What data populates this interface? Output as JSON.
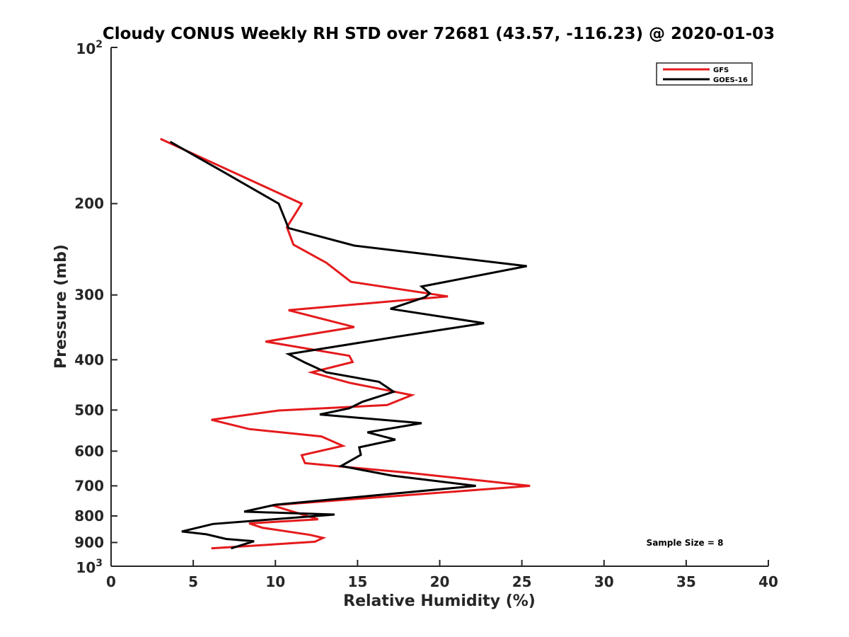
{
  "chart_data": {
    "type": "line",
    "title": "Cloudy CONUS Weekly RH STD over 72681 (43.57, -116.23) @ 2020-01-03",
    "xlabel": "Relative Humidity (%)",
    "ylabel": "Pressure (mb)",
    "xlim": [
      0,
      40
    ],
    "ylim": [
      100,
      1000
    ],
    "y_scale": "log",
    "y_reversed": true,
    "x_ticks": [
      "0",
      "5",
      "10",
      "15",
      "20",
      "25",
      "30",
      "35",
      "40"
    ],
    "y_ticks": [
      {
        "value": 100,
        "base": "10",
        "exp": "2"
      },
      {
        "value": 200,
        "label": "200"
      },
      {
        "value": 300,
        "label": "300"
      },
      {
        "value": 400,
        "label": "400"
      },
      {
        "value": 500,
        "label": "500"
      },
      {
        "value": 600,
        "label": "600"
      },
      {
        "value": 700,
        "label": "700"
      },
      {
        "value": 800,
        "label": "800"
      },
      {
        "value": 900,
        "label": "900"
      },
      {
        "value": 1000,
        "base": "10",
        "exp": "3"
      }
    ],
    "grid": false,
    "legend_position": "top-right",
    "annotation": "Sample Size = 8",
    "series": [
      {
        "name": "GFS",
        "color": "#e41a1c",
        "points": [
          [
            3.0,
            150
          ],
          [
            11.6,
            200
          ],
          [
            10.7,
            222
          ],
          [
            11.1,
            240
          ],
          [
            13.1,
            260
          ],
          [
            14.6,
            283
          ],
          [
            20.5,
            302
          ],
          [
            10.8,
            321
          ],
          [
            14.8,
            346
          ],
          [
            9.4,
            369
          ],
          [
            14.5,
            393
          ],
          [
            14.7,
            404
          ],
          [
            12.2,
            423
          ],
          [
            14.5,
            443
          ],
          [
            18.3,
            468
          ],
          [
            16.8,
            489
          ],
          [
            10.2,
            501
          ],
          [
            6.1,
            522
          ],
          [
            8.4,
            544
          ],
          [
            12.8,
            562
          ],
          [
            14.1,
            586
          ],
          [
            11.6,
            611
          ],
          [
            11.8,
            633
          ],
          [
            18.0,
            660
          ],
          [
            25.5,
            700
          ],
          [
            9.8,
            763
          ],
          [
            12.6,
            812
          ],
          [
            8.4,
            827
          ],
          [
            9.2,
            843
          ],
          [
            12.1,
            870
          ],
          [
            12.9,
            882
          ],
          [
            12.4,
            897
          ],
          [
            6.1,
            924
          ]
        ]
      },
      {
        "name": "GOES-16",
        "color": "#000000",
        "points": [
          [
            3.6,
            152
          ],
          [
            7.0,
            175
          ],
          [
            10.2,
            200
          ],
          [
            10.8,
            223
          ],
          [
            14.8,
            241
          ],
          [
            25.3,
            264
          ],
          [
            18.9,
            289
          ],
          [
            19.4,
            298
          ],
          [
            19.1,
            303
          ],
          [
            17.0,
            319
          ],
          [
            22.7,
            340
          ],
          [
            17.4,
            361
          ],
          [
            10.8,
            390
          ],
          [
            11.8,
            405
          ],
          [
            13.1,
            423
          ],
          [
            16.3,
            441
          ],
          [
            17.2,
            461
          ],
          [
            15.3,
            482
          ],
          [
            14.5,
            496
          ],
          [
            12.7,
            510
          ],
          [
            18.9,
            530
          ],
          [
            15.6,
            552
          ],
          [
            17.3,
            570
          ],
          [
            15.1,
            590
          ],
          [
            15.2,
            610
          ],
          [
            14.0,
            641
          ],
          [
            17.1,
            669
          ],
          [
            22.2,
            700
          ],
          [
            10.0,
            761
          ],
          [
            8.1,
            785
          ],
          [
            13.6,
            795
          ],
          [
            6.2,
            829
          ],
          [
            4.3,
            857
          ],
          [
            5.8,
            868
          ],
          [
            7.0,
            886
          ],
          [
            8.7,
            895
          ],
          [
            7.3,
            924
          ]
        ]
      }
    ]
  }
}
